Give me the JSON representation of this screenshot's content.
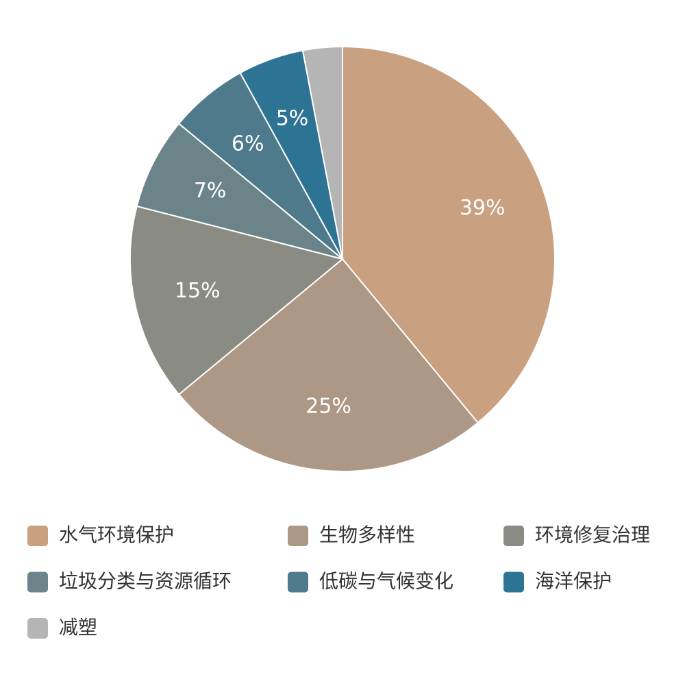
{
  "chart_data": {
    "type": "pie",
    "categories": [
      "水气环境保护",
      "生物多样性",
      "环境修复治理",
      "垃圾分类与资源循环",
      "低碳与气候变化",
      "海洋保护",
      "减塑"
    ],
    "values": [
      39,
      25,
      15,
      7,
      6,
      5,
      3
    ],
    "value_labels": [
      "39%",
      "25%",
      "15%",
      "7%",
      "6%",
      "5%",
      null
    ],
    "colors": [
      "#c9a080",
      "#ad9885",
      "#8a8c84",
      "#6b8489",
      "#4e7a8c",
      "#2d7394",
      "#b5b5b5"
    ]
  }
}
